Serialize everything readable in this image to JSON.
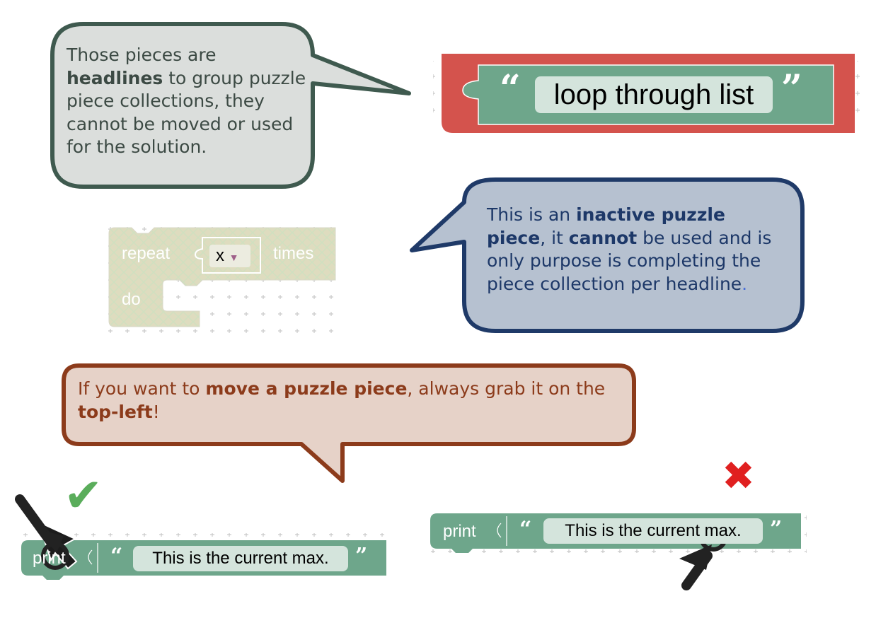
{
  "callouts": {
    "headline": {
      "segments": [
        {
          "text": "Those pieces are ",
          "bold": false
        },
        {
          "text": "headlines",
          "bold": true
        },
        {
          "text": " to group puzzle piece collections, they cannot be moved or used for the solution.",
          "bold": false
        }
      ]
    },
    "inactive": {
      "segments": [
        {
          "text": "This is an ",
          "bold": false
        },
        {
          "text": "inactive puzzle piece",
          "bold": true
        },
        {
          "text": ", it ",
          "bold": false
        },
        {
          "text": "cannot",
          "bold": true
        },
        {
          "text": " be used and is only purpose is completing the piece collection per headline",
          "bold": false
        },
        {
          "text": ".",
          "bold": false,
          "color": "#4a6fd8"
        }
      ]
    },
    "move": {
      "segments": [
        {
          "text": "If you want to ",
          "bold": false
        },
        {
          "text": "move a puzzle piece",
          "bold": true
        },
        {
          "text": ", always grab it on the ",
          "bold": false
        },
        {
          "text": "top-left",
          "bold": true
        },
        {
          "text": "!",
          "bold": false
        }
      ]
    }
  },
  "headline_block": {
    "text": "loop through list",
    "open_quote": "“",
    "close_quote": "”"
  },
  "repeat_block": {
    "repeat_label": "repeat",
    "var_value": "x",
    "times_label": "times",
    "do_label": "do"
  },
  "print_block_correct": {
    "label": "print",
    "text": "This is the current max.",
    "open_quote": "“",
    "close_quote": "”"
  },
  "print_block_wrong": {
    "label": "print",
    "text": "This is the current max.",
    "open_quote": "“",
    "close_quote": "”"
  },
  "marks": {
    "check": "✔",
    "cross": "✖"
  },
  "colors": {
    "headline_bubble_fill": "#dbdedc",
    "headline_bubble_stroke": "#3f5a4f",
    "headline_text": "#3c4a44",
    "inactive_bubble_fill": "#b6c1d0",
    "inactive_bubble_stroke": "#1f3a68",
    "inactive_text": "#1d3868",
    "move_bubble_fill": "#e6d2c8",
    "move_bubble_stroke": "#8c3b1b",
    "move_text": "#8c3b1b",
    "block_green": "#6ea68b",
    "headline_red": "#d4534d",
    "check_green": "#5aad5b",
    "cross_red": "#e02020"
  },
  "icons": [
    "speech-bubble-icon",
    "checkmark-icon",
    "cross-icon",
    "mouse-cursor-icon"
  ]
}
